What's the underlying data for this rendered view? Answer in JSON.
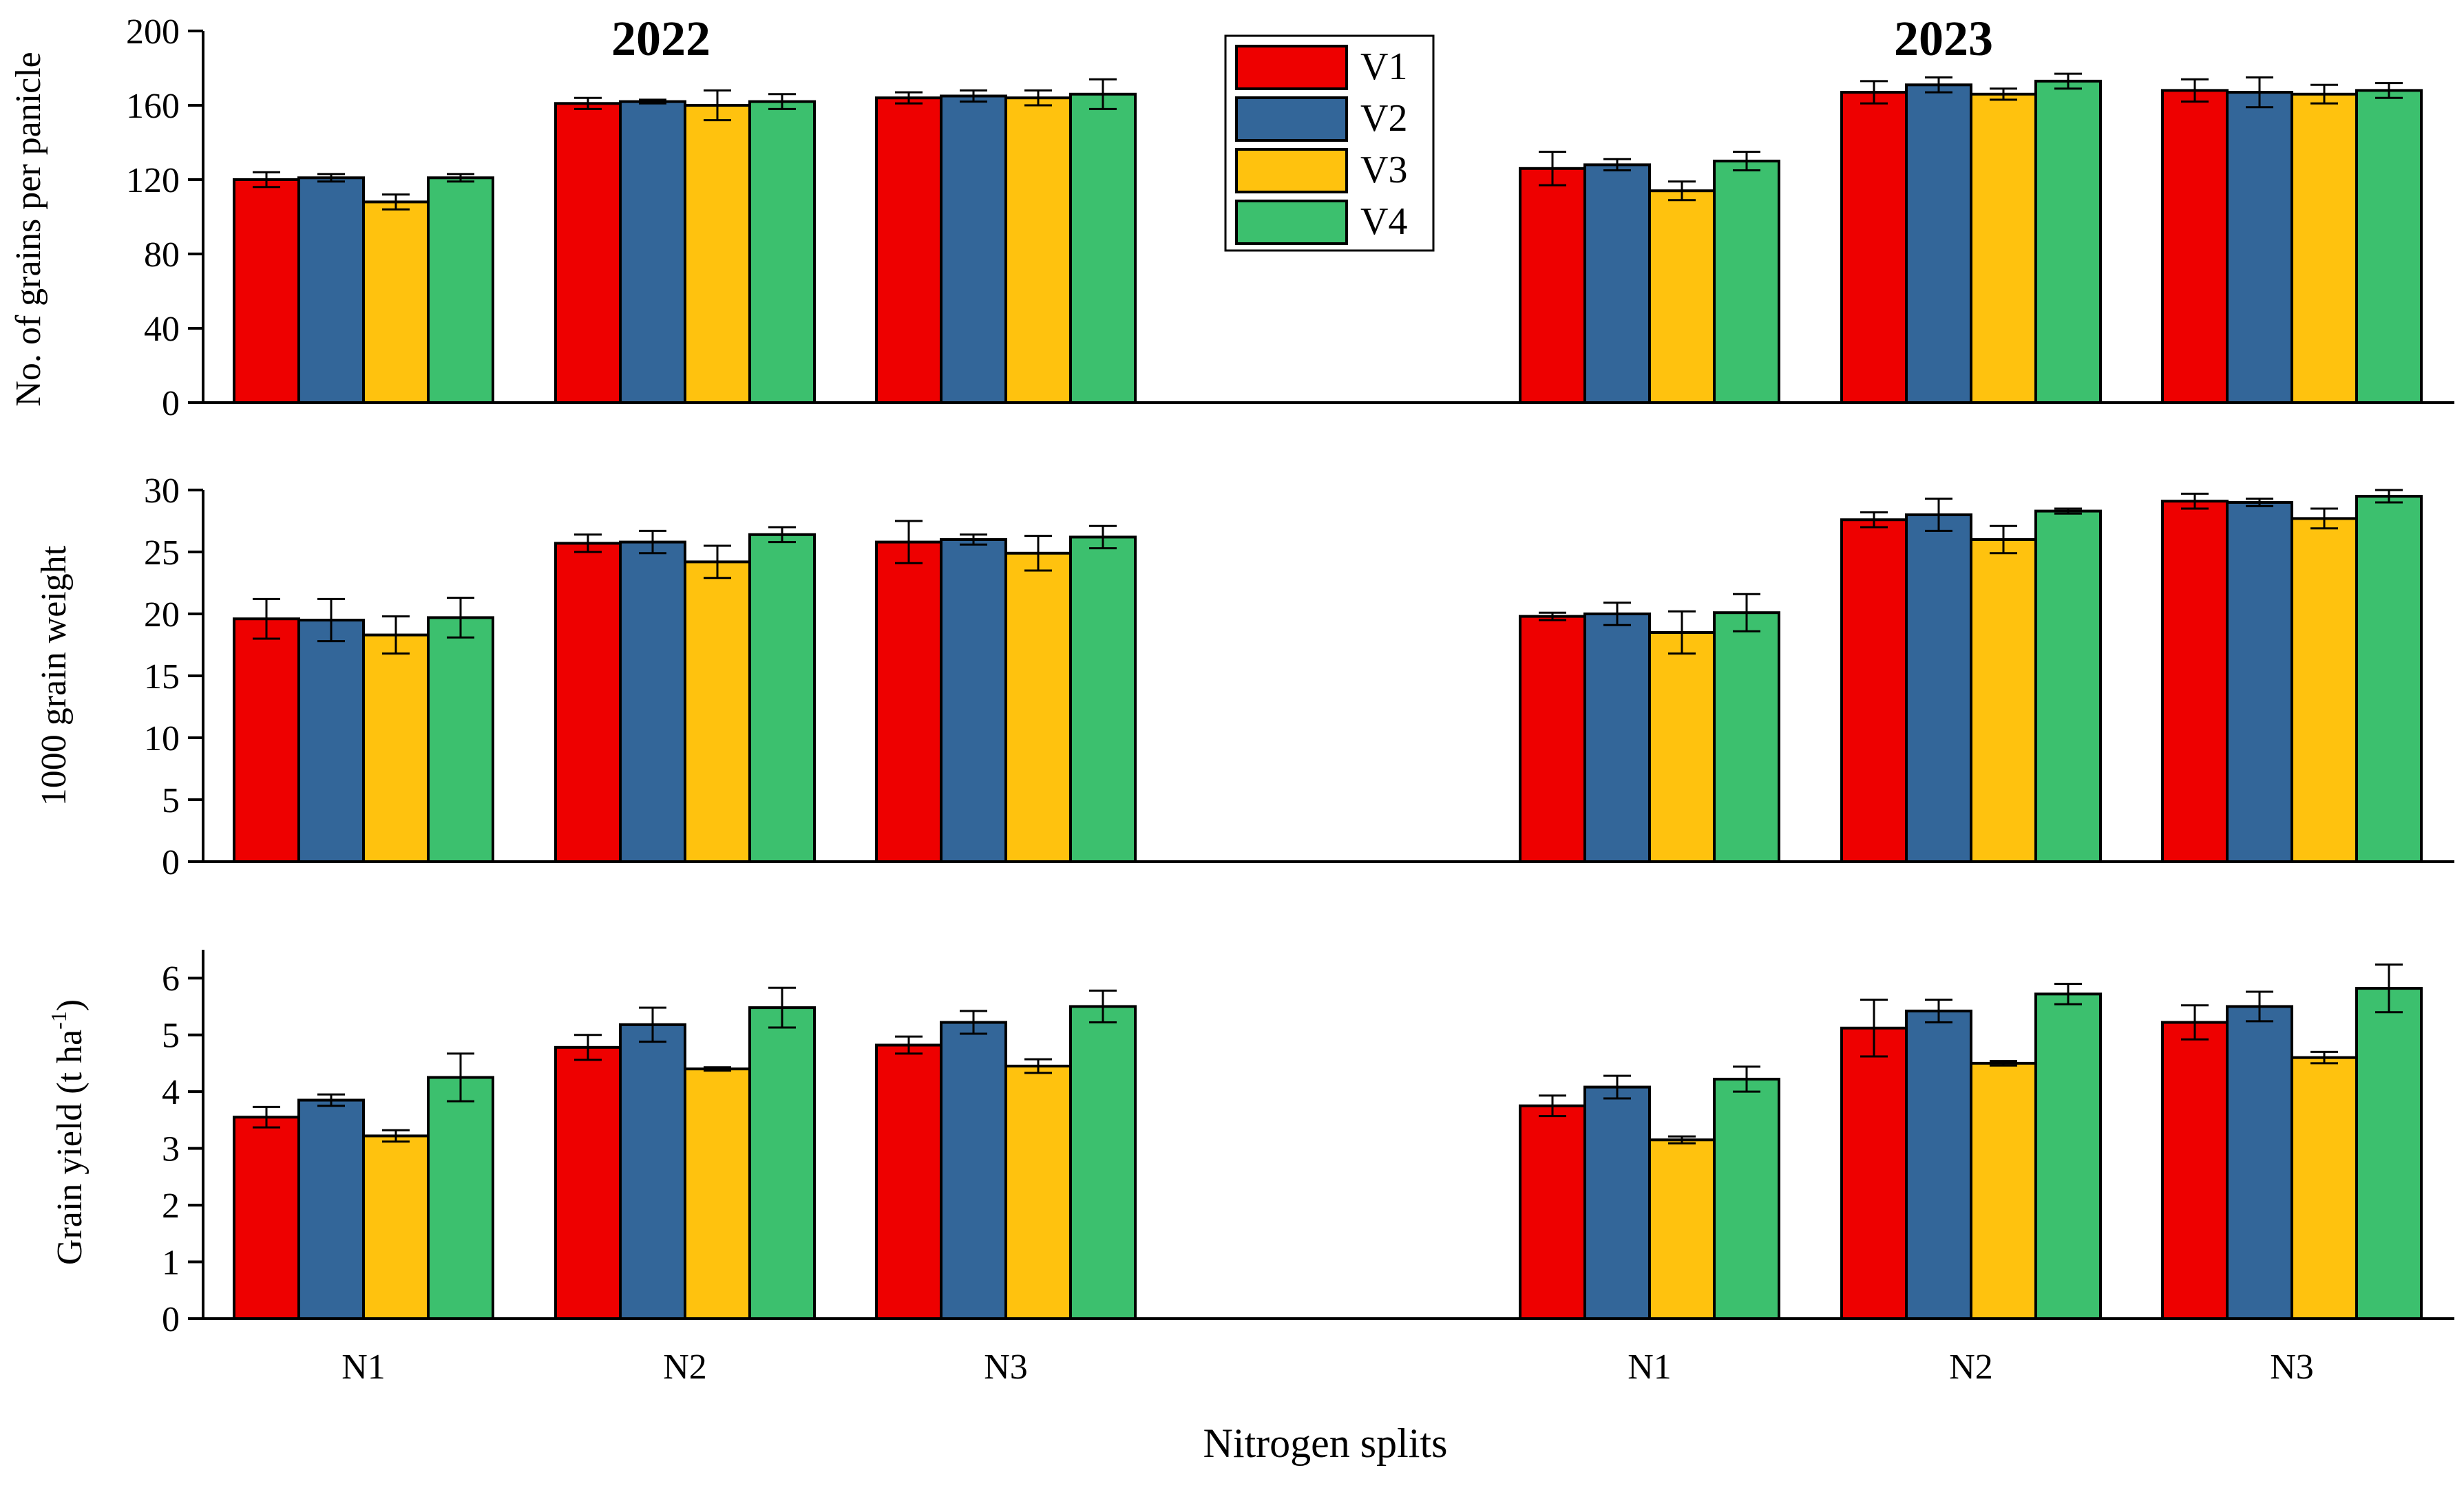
{
  "chart_data": {
    "type": "bar",
    "xlabel": "Nitrogen splits",
    "years": [
      "2022",
      "2023"
    ],
    "categories": [
      "N1",
      "N2",
      "N3"
    ],
    "legend": {
      "position": "top-center",
      "entries": [
        {
          "name": "V1",
          "color": "#ee0000"
        },
        {
          "name": "V2",
          "color": "#336699"
        },
        {
          "name": "V3",
          "color": "#ffc20e"
        },
        {
          "name": "V4",
          "color": "#3cc06e"
        }
      ]
    },
    "panels": [
      {
        "ylabel": "No. of grains per panicle",
        "ylim": [
          0,
          200
        ],
        "yticks": [
          0,
          40,
          80,
          120,
          160,
          200
        ],
        "ytick_labels": [
          "0",
          "40",
          "80",
          "120",
          "160",
          "200"
        ],
        "values": {
          "2022": [
            [
              120,
              121,
              108,
              121
            ],
            [
              161,
              162,
              160,
              162
            ],
            [
              164,
              165,
              164,
              166
            ]
          ],
          "2023": [
            [
              126,
              128,
              114,
              130
            ],
            [
              167,
              171,
              166,
              173
            ],
            [
              168,
              167,
              166,
              168
            ]
          ]
        },
        "errors": {
          "2022": [
            [
              4,
              2,
              4,
              2
            ],
            [
              3,
              1,
              8,
              4
            ],
            [
              3,
              3,
              4,
              8
            ]
          ],
          "2023": [
            [
              9,
              3,
              5,
              5
            ],
            [
              6,
              4,
              3,
              4
            ],
            [
              6,
              8,
              5,
              4
            ]
          ]
        }
      },
      {
        "ylabel": "1000 grain weight",
        "ylim": [
          0,
          30
        ],
        "yticks": [
          0,
          5,
          10,
          15,
          20,
          25,
          30
        ],
        "ytick_labels": [
          "0",
          "5",
          "10",
          "15",
          "20",
          "25",
          "30"
        ],
        "values": {
          "2022": [
            [
              19.6,
              19.5,
              18.3,
              19.7
            ],
            [
              25.7,
              25.8,
              24.2,
              26.4
            ],
            [
              25.8,
              26.0,
              24.9,
              26.2
            ]
          ],
          "2023": [
            [
              19.8,
              20.0,
              18.5,
              20.1
            ],
            [
              27.6,
              28.0,
              26.0,
              28.3
            ],
            [
              29.1,
              29.0,
              27.7,
              29.5
            ]
          ]
        },
        "errors": {
          "2022": [
            [
              1.6,
              1.7,
              1.5,
              1.6
            ],
            [
              0.7,
              0.9,
              1.3,
              0.6
            ],
            [
              1.7,
              0.4,
              1.4,
              0.9
            ]
          ],
          "2023": [
            [
              0.3,
              0.9,
              1.7,
              1.5
            ],
            [
              0.6,
              1.3,
              1.1,
              0.2
            ],
            [
              0.6,
              0.3,
              0.8,
              0.5
            ]
          ]
        }
      },
      {
        "ylabel_main": "Grain yield (t ha",
        "ylabel_sup": "-1",
        "ylabel_end": ")",
        "ylim": [
          0,
          6.5
        ],
        "yticks": [
          0,
          1,
          2,
          3,
          4,
          5,
          6
        ],
        "ytick_labels": [
          "0",
          "1",
          "2",
          "3",
          "4",
          "5",
          "6"
        ],
        "values": {
          "2022": [
            [
              3.55,
              3.85,
              3.22,
              4.25
            ],
            [
              4.78,
              5.18,
              4.4,
              5.48
            ],
            [
              4.82,
              5.22,
              4.45,
              5.5
            ]
          ],
          "2023": [
            [
              3.75,
              4.08,
              3.15,
              4.22
            ],
            [
              5.12,
              5.42,
              4.5,
              5.72
            ],
            [
              5.22,
              5.5,
              4.6,
              5.82
            ]
          ]
        },
        "errors": {
          "2022": [
            [
              0.18,
              0.1,
              0.1,
              0.42
            ],
            [
              0.22,
              0.3,
              0.03,
              0.35
            ],
            [
              0.15,
              0.2,
              0.12,
              0.28
            ]
          ],
          "2023": [
            [
              0.18,
              0.2,
              0.06,
              0.22
            ],
            [
              0.5,
              0.2,
              0.04,
              0.18
            ],
            [
              0.3,
              0.26,
              0.1,
              0.42
            ]
          ]
        }
      }
    ]
  }
}
